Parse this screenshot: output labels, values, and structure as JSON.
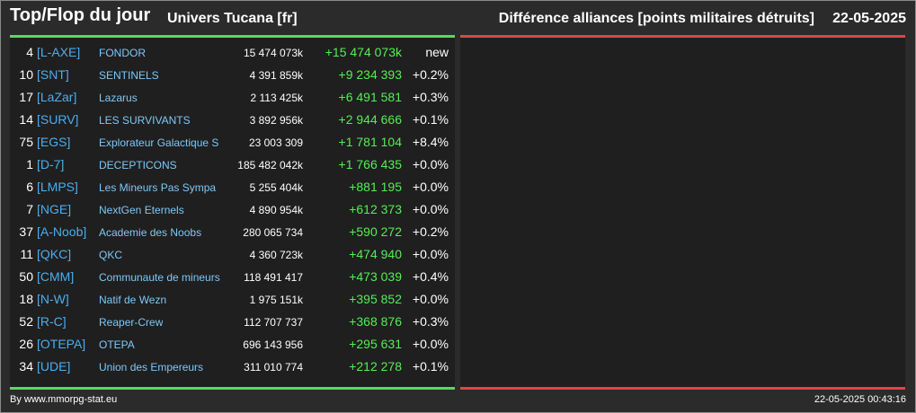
{
  "header": {
    "title": "Top/Flop du jour",
    "universe": "Univers Tucana [fr]",
    "metric": "Différence alliances [points militaires détruits]",
    "date": "22-05-2025"
  },
  "rows": [
    {
      "rank": "4",
      "tag": "[L-AXE]",
      "name": "FONDOR",
      "points": "15 474 073k",
      "diff": "+15 474 073k",
      "pct": "new"
    },
    {
      "rank": "10",
      "tag": "[SNT]",
      "name": "SENTINELS",
      "points": "4 391 859k",
      "diff": "+9 234 393",
      "pct": "+0.2%"
    },
    {
      "rank": "17",
      "tag": "[LaZar]",
      "name": "Lazarus",
      "points": "2 113 425k",
      "diff": "+6 491 581",
      "pct": "+0.3%"
    },
    {
      "rank": "14",
      "tag": "[SURV]",
      "name": "LES SURVIVANTS",
      "points": "3 892 956k",
      "diff": "+2 944 666",
      "pct": "+0.1%"
    },
    {
      "rank": "75",
      "tag": "[EGS]",
      "name": "Explorateur Galactique S",
      "points": "23 003 309",
      "diff": "+1 781 104",
      "pct": "+8.4%"
    },
    {
      "rank": "1",
      "tag": "[D-7]",
      "name": "DECEPTICONS",
      "points": "185 482 042k",
      "diff": "+1 766 435",
      "pct": "+0.0%"
    },
    {
      "rank": "6",
      "tag": "[LMPS]",
      "name": "Les Mineurs Pas Sympa",
      "points": "5 255 404k",
      "diff": "+881 195",
      "pct": "+0.0%"
    },
    {
      "rank": "7",
      "tag": "[NGE]",
      "name": "NextGen Eternels",
      "points": "4 890 954k",
      "diff": "+612 373",
      "pct": "+0.0%"
    },
    {
      "rank": "37",
      "tag": "[A-Noob]",
      "name": "Academie des Noobs",
      "points": "280 065 734",
      "diff": "+590 272",
      "pct": "+0.2%"
    },
    {
      "rank": "11",
      "tag": "[QKC]",
      "name": "QKC",
      "points": "4 360 723k",
      "diff": "+474 940",
      "pct": "+0.0%"
    },
    {
      "rank": "50",
      "tag": "[CMM]",
      "name": "Communaute de mineurs",
      "points": "118 491 417",
      "diff": "+473 039",
      "pct": "+0.4%"
    },
    {
      "rank": "18",
      "tag": "[N-W]",
      "name": "Natif de Wezn",
      "points": "1 975 151k",
      "diff": "+395 852",
      "pct": "+0.0%"
    },
    {
      "rank": "52",
      "tag": "[R-C]",
      "name": "Reaper-Crew",
      "points": "112 707 737",
      "diff": "+368 876",
      "pct": "+0.3%"
    },
    {
      "rank": "26",
      "tag": "[OTEPA]",
      "name": "OTEPA",
      "points": "696 143 956",
      "diff": "+295 631",
      "pct": "+0.0%"
    },
    {
      "rank": "34",
      "tag": "[UDE]",
      "name": "Union des Empereurs",
      "points": "311 010 774",
      "diff": "+212 278",
      "pct": "+0.1%"
    }
  ],
  "footer": {
    "source": "By www.mmorpg-stat.eu",
    "timestamp": "22-05-2025 00:43:16"
  },
  "colors": {
    "top_bar": "#55dd55",
    "flop_bar": "#e0463e",
    "tag": "#4aaef0",
    "name": "#7ec8f8",
    "positive": "#55ee55"
  }
}
